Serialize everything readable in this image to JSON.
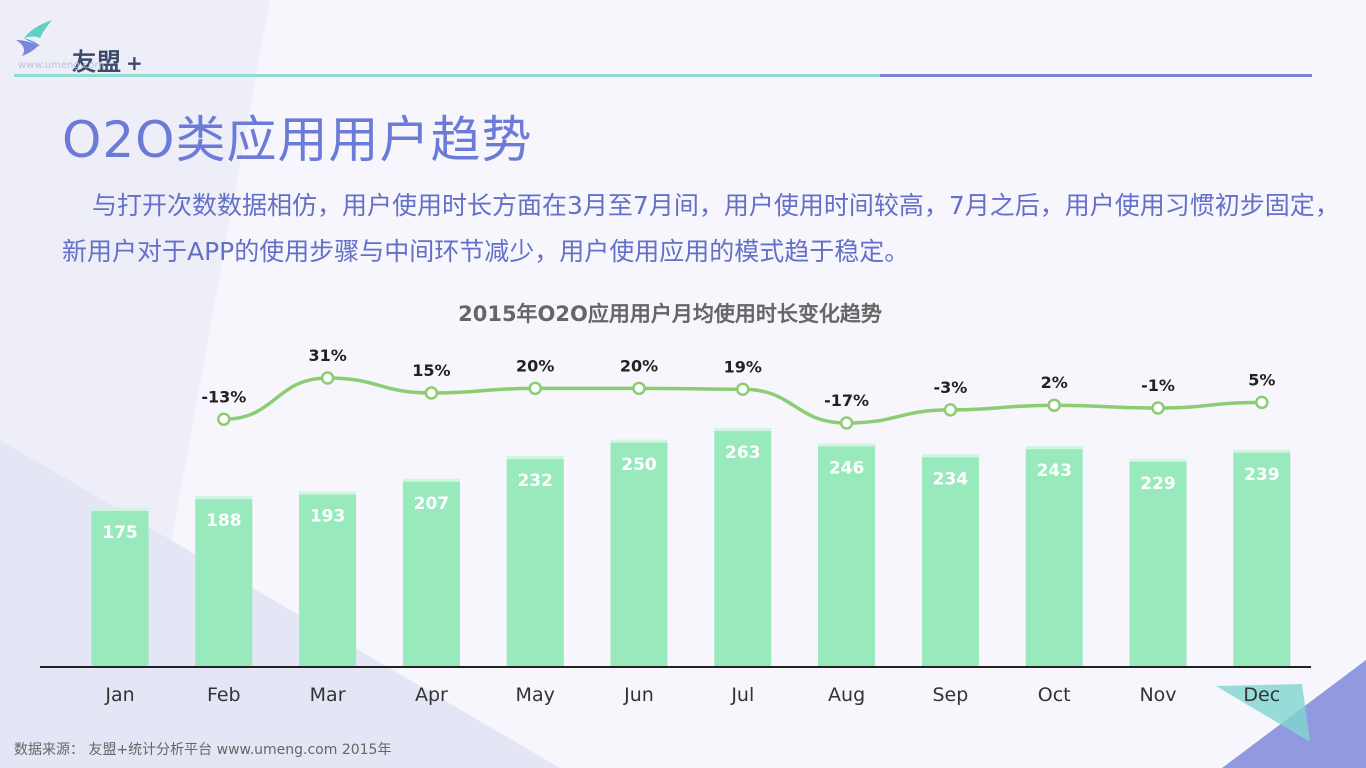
{
  "brand": {
    "name": "友盟",
    "plus": "+",
    "url": "www.umeng.com",
    "colors": {
      "accent": "#6c7bd7",
      "teal_line": "#8fdcd3",
      "violet_line": "#7b86d8"
    }
  },
  "page": {
    "title": "O2O类应用用户趋势",
    "description": "与打开次数数据相仿，用户使用时长方面在3月至7月间，用户使用时间较高，7月之后，用户使用习惯初步固定，新用户对于APP的使用步骤与中间环节减少，用户使用应用的模式趋于稳定。"
  },
  "chart_data": {
    "type": "bar",
    "title": "2015年O2O应用用户月均使用时长变化趋势",
    "categories": [
      "Jan",
      "Feb",
      "Mar",
      "Apr",
      "May",
      "Jun",
      "Jul",
      "Aug",
      "Sep",
      "Oct",
      "Nov",
      "Dec"
    ],
    "series": [
      {
        "type": "bar",
        "values": [
          175,
          188,
          193,
          207,
          232,
          250,
          263,
          246,
          234,
          243,
          229,
          239
        ],
        "color": "#98e9bc"
      },
      {
        "type": "line",
        "values": [
          null,
          -13,
          31,
          15,
          20,
          20,
          19,
          -17,
          -3,
          2,
          -1,
          5
        ],
        "labels": [
          null,
          "-13%",
          "31%",
          "15%",
          "20%",
          "20%",
          "19%",
          "-17%",
          "-3%",
          "2%",
          "-1%",
          "5%"
        ],
        "color": "#8ccc73"
      }
    ],
    "xlabel": "",
    "ylabel": "",
    "ylim": [
      0,
      263
    ],
    "grid": false,
    "legend": "none"
  },
  "footer": {
    "source": "数据来源： 友盟+统计分析平台 www.umeng.com 2015年"
  }
}
